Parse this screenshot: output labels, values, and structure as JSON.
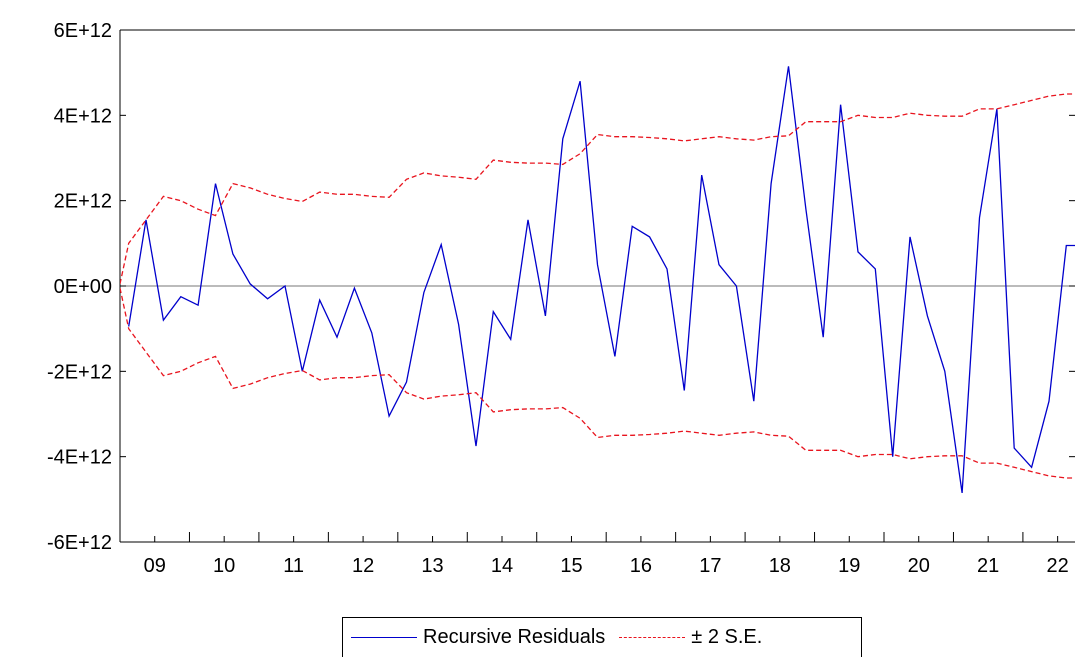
{
  "chart_data": {
    "type": "line",
    "title": "",
    "xlabel": "",
    "ylabel": "",
    "ylim": [
      -6000000000000.0,
      6000000000000.0
    ],
    "yticks": [
      {
        "value": 6000000000000.0,
        "label": "6E+12"
      },
      {
        "value": 4000000000000.0,
        "label": "4E+12"
      },
      {
        "value": 2000000000000.0,
        "label": "2E+12"
      },
      {
        "value": 0,
        "label": "0E+00"
      },
      {
        "value": -2000000000000.0,
        "label": "-2E+12"
      },
      {
        "value": -4000000000000.0,
        "label": "-4E+12"
      },
      {
        "value": -6000000000000.0,
        "label": "-6E+12"
      }
    ],
    "xlim": [
      2009,
      2022.75
    ],
    "xticks": [
      {
        "value": 2009,
        "label": "09"
      },
      {
        "value": 2010,
        "label": "10"
      },
      {
        "value": 2011,
        "label": "11"
      },
      {
        "value": 2012,
        "label": "12"
      },
      {
        "value": 2013,
        "label": "13"
      },
      {
        "value": 2014,
        "label": "14"
      },
      {
        "value": 2015,
        "label": "15"
      },
      {
        "value": 2016,
        "label": "16"
      },
      {
        "value": 2017,
        "label": "17"
      },
      {
        "value": 2018,
        "label": "18"
      },
      {
        "value": 2019,
        "label": "19"
      },
      {
        "value": 2020,
        "label": "20"
      },
      {
        "value": 2021,
        "label": "21"
      },
      {
        "value": 2022,
        "label": "22"
      }
    ],
    "zero_line": true,
    "legend_position": "bottom",
    "series": [
      {
        "name": "Recursive Residuals",
        "color": "#0000cc",
        "style": "solid",
        "x": [
          2009.125,
          2009.375,
          2009.625,
          2009.875,
          2010.125,
          2010.375,
          2010.625,
          2010.875,
          2011.125,
          2011.375,
          2011.625,
          2011.875,
          2012.125,
          2012.375,
          2012.625,
          2012.875,
          2013.125,
          2013.375,
          2013.625,
          2013.875,
          2014.125,
          2014.375,
          2014.625,
          2014.875,
          2015.125,
          2015.375,
          2015.625,
          2015.875,
          2016.125,
          2016.375,
          2016.625,
          2016.875,
          2017.125,
          2017.375,
          2017.625,
          2017.875,
          2018.125,
          2018.375,
          2018.625,
          2018.875,
          2019.125,
          2019.375,
          2019.625,
          2019.875,
          2020.125,
          2020.375,
          2020.625,
          2020.875,
          2021.125,
          2021.375,
          2021.625,
          2021.875,
          2022.125,
          2022.375,
          2022.625,
          2022.75
        ],
        "y": [
          -950000000000.0,
          1550000000000.0,
          -800000000000.0,
          -250000000000.0,
          -450000000000.0,
          2400000000000.0,
          750000000000.0,
          50000000000.0,
          -300000000000.0,
          0.0,
          -2000000000000.0,
          -330000000000.0,
          -1200000000000.0,
          -50000000000.0,
          -1100000000000.0,
          -3050000000000.0,
          -2250000000000.0,
          -150000000000.0,
          970000000000.0,
          -900000000000.0,
          -3750000000000.0,
          -600000000000.0,
          -1250000000000.0,
          1550000000000.0,
          -700000000000.0,
          3450000000000.0,
          4800000000000.0,
          500000000000.0,
          -1650000000000.0,
          1400000000000.0,
          1150000000000.0,
          400000000000.0,
          -2450000000000.0,
          2600000000000.0,
          500000000000.0,
          0.0,
          -2700000000000.0,
          2400000000000.0,
          5150000000000.0,
          1800000000000.0,
          -1200000000000.0,
          4250000000000.0,
          800000000000.0,
          400000000000.0,
          -4000000000000.0,
          1150000000000.0,
          -700000000000.0,
          -2000000000000.0,
          -4850000000000.0,
          1600000000000.0,
          4150000000000.0,
          -3800000000000.0,
          -4250000000000.0,
          -2700000000000.0,
          950000000000.0,
          950000000000.0
        ]
      },
      {
        "name": "± 2 S.E.",
        "color": "#e8141e",
        "style": "dashed",
        "x": [
          2009.0,
          2009.125,
          2009.375,
          2009.625,
          2009.875,
          2010.125,
          2010.375,
          2010.625,
          2010.875,
          2011.125,
          2011.375,
          2011.625,
          2011.875,
          2012.125,
          2012.375,
          2012.625,
          2012.875,
          2013.125,
          2013.375,
          2013.625,
          2013.875,
          2014.125,
          2014.375,
          2014.625,
          2014.875,
          2015.125,
          2015.375,
          2015.625,
          2015.875,
          2016.125,
          2016.375,
          2016.625,
          2016.875,
          2017.125,
          2017.375,
          2017.625,
          2017.875,
          2018.125,
          2018.375,
          2018.625,
          2018.875,
          2019.125,
          2019.375,
          2019.625,
          2019.875,
          2020.125,
          2020.375,
          2020.625,
          2020.875,
          2021.125,
          2021.375,
          2021.625,
          2021.875,
          2022.125,
          2022.375,
          2022.625,
          2022.75
        ],
        "y": [
          50000000000.0,
          1000000000000.0,
          1550000000000.0,
          2100000000000.0,
          2000000000000.0,
          1800000000000.0,
          1650000000000.0,
          2400000000000.0,
          2300000000000.0,
          2150000000000.0,
          2050000000000.0,
          1980000000000.0,
          2200000000000.0,
          2150000000000.0,
          2150000000000.0,
          2100000000000.0,
          2080000000000.0,
          2500000000000.0,
          2650000000000.0,
          2580000000000.0,
          2550000000000.0,
          2500000000000.0,
          2950000000000.0,
          2900000000000.0,
          2880000000000.0,
          2880000000000.0,
          2850000000000.0,
          3100000000000.0,
          3550000000000.0,
          3500000000000.0,
          3500000000000.0,
          3480000000000.0,
          3450000000000.0,
          3400000000000.0,
          3450000000000.0,
          3500000000000.0,
          3450000000000.0,
          3420000000000.0,
          3500000000000.0,
          3520000000000.0,
          3850000000000.0,
          3850000000000.0,
          3850000000000.0,
          4000000000000.0,
          3950000000000.0,
          3950000000000.0,
          4050000000000.0,
          4000000000000.0,
          3980000000000.0,
          3980000000000.0,
          4150000000000.0,
          4150000000000.0,
          4250000000000.0,
          4350000000000.0,
          4450000000000.0,
          4500000000000.0,
          4500000000000.0
        ],
        "mirror": true
      }
    ]
  }
}
